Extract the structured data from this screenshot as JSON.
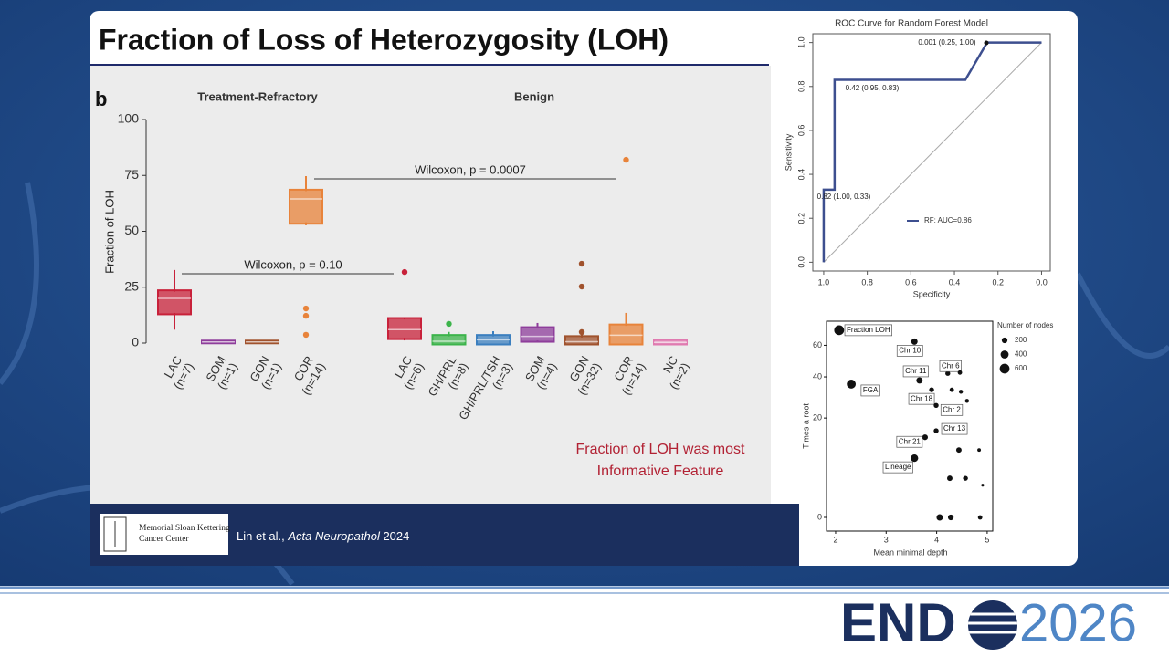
{
  "slide": {
    "title": "Fraction of Loss of Heterozygosity (LOH)",
    "panel_label": "b",
    "note": [
      "Fraction of LOH was most",
      "Informative Feature"
    ],
    "citation": {
      "authors": "Lin et al., ",
      "journal": "Acta Neuropathol",
      "year": " 2024"
    },
    "institution": [
      "Memorial Sloan Kettering",
      "Cancer Center"
    ],
    "logo": {
      "prefix": "END",
      "year": "2026"
    }
  },
  "chart_data": [
    {
      "type": "box",
      "y_label": "Fraction of LOH",
      "ylim": [
        0,
        100
      ],
      "yticks": [
        0,
        25,
        50,
        75,
        100
      ],
      "groups": [
        {
          "label": "Treatment-Refractory",
          "boxes": [
            {
              "label": [
                "LAC",
                "(n=7)"
              ],
              "color": "#c8213a",
              "whislo": 6,
              "q1": 13.5,
              "med": 20,
              "q3": 23,
              "whishi": 32.7,
              "fliers": []
            },
            {
              "label": [
                "SOM",
                "(n=1)"
              ],
              "color": "#8e3d9b",
              "whislo": 0.5,
              "q1": 0.5,
              "med": 0.5,
              "q3": 0.5,
              "whishi": 0.5,
              "fliers": []
            },
            {
              "label": [
                "GON",
                "(n=1)"
              ],
              "color": "#a0522d",
              "whislo": 0.5,
              "q1": 0.5,
              "med": 0.5,
              "q3": 0.5,
              "whishi": 0.5,
              "fliers": []
            },
            {
              "label": [
                "COR",
                "(n=14)"
              ],
              "color": "#e8833a",
              "whislo": 52.7,
              "q1": 54,
              "med": 64.5,
              "q3": 68,
              "whishi": 74.7,
              "fliers": [
                15.5,
                12.2,
                3.7
              ]
            }
          ]
        },
        {
          "label": "Benign",
          "boxes": [
            {
              "label": [
                "LAC",
                "(n=6)"
              ],
              "color": "#c8213a",
              "whislo": 1.2,
              "q1": 2.4,
              "med": 6,
              "q3": 10.6,
              "whishi": 11.4,
              "fliers": [
                31.8
              ]
            },
            {
              "label": [
                "GH/PRL",
                "(n=8)"
              ],
              "color": "#3cb44b",
              "whislo": 0,
              "q1": 0,
              "med": 0.8,
              "q3": 3,
              "whishi": 5,
              "fliers": [
                8.6
              ]
            },
            {
              "label": [
                "GH/PRL/TSH",
                "(n=3)"
              ],
              "color": "#3b7fbf",
              "whislo": 0,
              "q1": 0,
              "med": 1.5,
              "q3": 3,
              "whishi": 5.3,
              "fliers": []
            },
            {
              "label": [
                "SOM",
                "(n=4)"
              ],
              "color": "#8e3d9b",
              "whislo": 0.4,
              "q1": 1.2,
              "med": 3,
              "q3": 6.5,
              "whishi": 9,
              "fliers": []
            },
            {
              "label": [
                "GON",
                "(n=32)"
              ],
              "color": "#a0522d",
              "whislo": 0,
              "q1": 0,
              "med": 0.6,
              "q3": 2.5,
              "whishi": 4,
              "fliers": [
                35.5,
                25.3,
                4.9
              ]
            },
            {
              "label": [
                "COR",
                "(n=14)"
              ],
              "color": "#e8833a",
              "whislo": 0,
              "q1": 0,
              "med": 3.5,
              "q3": 7.7,
              "whishi": 13.5,
              "fliers": [
                82
              ]
            },
            {
              "label": [
                "NC",
                "(n=2)"
              ],
              "color": "#e07ab0",
              "whislo": 0,
              "q1": 0,
              "med": 0.3,
              "q3": 0.8,
              "whishi": 0.8,
              "fliers": []
            }
          ]
        }
      ],
      "annotations": [
        "Wilcoxon, p = 0.10",
        "Wilcoxon, p = 0.0007"
      ]
    },
    {
      "type": "roc",
      "title": "ROC Curve for Random Forest Model",
      "x_label": "Specificity",
      "y_label": "Sensitivity",
      "xlim": [
        1.05,
        -0.04
      ],
      "ylim": [
        -0.04,
        1.04
      ],
      "xticks": [
        {
          "value": 1,
          "label": "1.0"
        },
        0.8,
        0.6,
        0.4,
        0.2,
        {
          "value": 0,
          "label": "0.0"
        }
      ],
      "yticks": [
        {
          "value": 0,
          "label": "0.0"
        },
        0.2,
        0.4,
        0.6,
        0.8,
        {
          "value": 1,
          "label": "1.0"
        }
      ],
      "series": [
        {
          "name": "RF: AUC=0.86",
          "color": "#3d4f8f",
          "x": [
            1,
            1,
            0.95,
            0.95,
            0.35,
            0.25,
            0
          ],
          "y": [
            0,
            0.33,
            0.33,
            0.83,
            0.83,
            1,
            1
          ]
        }
      ],
      "annotations": [
        "0.001 (0.25, 1.00)",
        "0.42 (0.95, 0.83)",
        "0.82 (1.00, 0.33)"
      ]
    },
    {
      "type": "scatter",
      "x_label": "Mean minimal depth",
      "y_label": "Times a root",
      "yscale": "sqrt",
      "xlim": [
        1.82,
        5.11
      ],
      "ylim": [
        0,
        78
      ],
      "xticks": [
        2,
        3,
        4,
        5
      ],
      "yticks": [
        0,
        20,
        40,
        60
      ],
      "legend_title": "Number of nodes",
      "legend_sizes": [
        200,
        400,
        600
      ],
      "points": [
        {
          "x": 2.07,
          "y": 71,
          "size": 600,
          "label": "Fraction LOH"
        },
        {
          "x": 2.31,
          "y": 36,
          "size": 500,
          "label": "FGA"
        },
        {
          "x": 3.56,
          "y": 62.6,
          "size": 250,
          "label": "Chr 10"
        },
        {
          "x": 3.66,
          "y": 38,
          "size": 250,
          "label": "Chr 11"
        },
        {
          "x": 4.22,
          "y": 42,
          "size": 150,
          "label": "Chr 6"
        },
        {
          "x": 4.46,
          "y": 42.5,
          "size": 120
        },
        {
          "x": 3.9,
          "y": 33,
          "size": 150,
          "label": "Chr 18"
        },
        {
          "x": 4.3,
          "y": 33,
          "size": 120
        },
        {
          "x": 4.48,
          "y": 32,
          "size": 100
        },
        {
          "x": 4.6,
          "y": 27.5,
          "size": 100
        },
        {
          "x": 3.99,
          "y": 25.4,
          "size": 150,
          "label": "Chr 2"
        },
        {
          "x": 3.99,
          "y": 15.2,
          "size": 150,
          "label": "Chr 13"
        },
        {
          "x": 3.77,
          "y": 13,
          "size": 200,
          "label": "Chr 21"
        },
        {
          "x": 4.44,
          "y": 9.2,
          "size": 180
        },
        {
          "x": 4.84,
          "y": 9.2,
          "size": 80
        },
        {
          "x": 3.56,
          "y": 7.1,
          "size": 350,
          "label": "Lineage"
        },
        {
          "x": 4.26,
          "y": 3.1,
          "size": 180
        },
        {
          "x": 4.57,
          "y": 3.1,
          "size": 150
        },
        {
          "x": 4.91,
          "y": 2.1,
          "size": 50
        },
        {
          "x": 4.06,
          "y": 0,
          "size": 250
        },
        {
          "x": 4.28,
          "y": 0,
          "size": 200
        },
        {
          "x": 4.86,
          "y": 0,
          "size": 120
        }
      ]
    }
  ]
}
